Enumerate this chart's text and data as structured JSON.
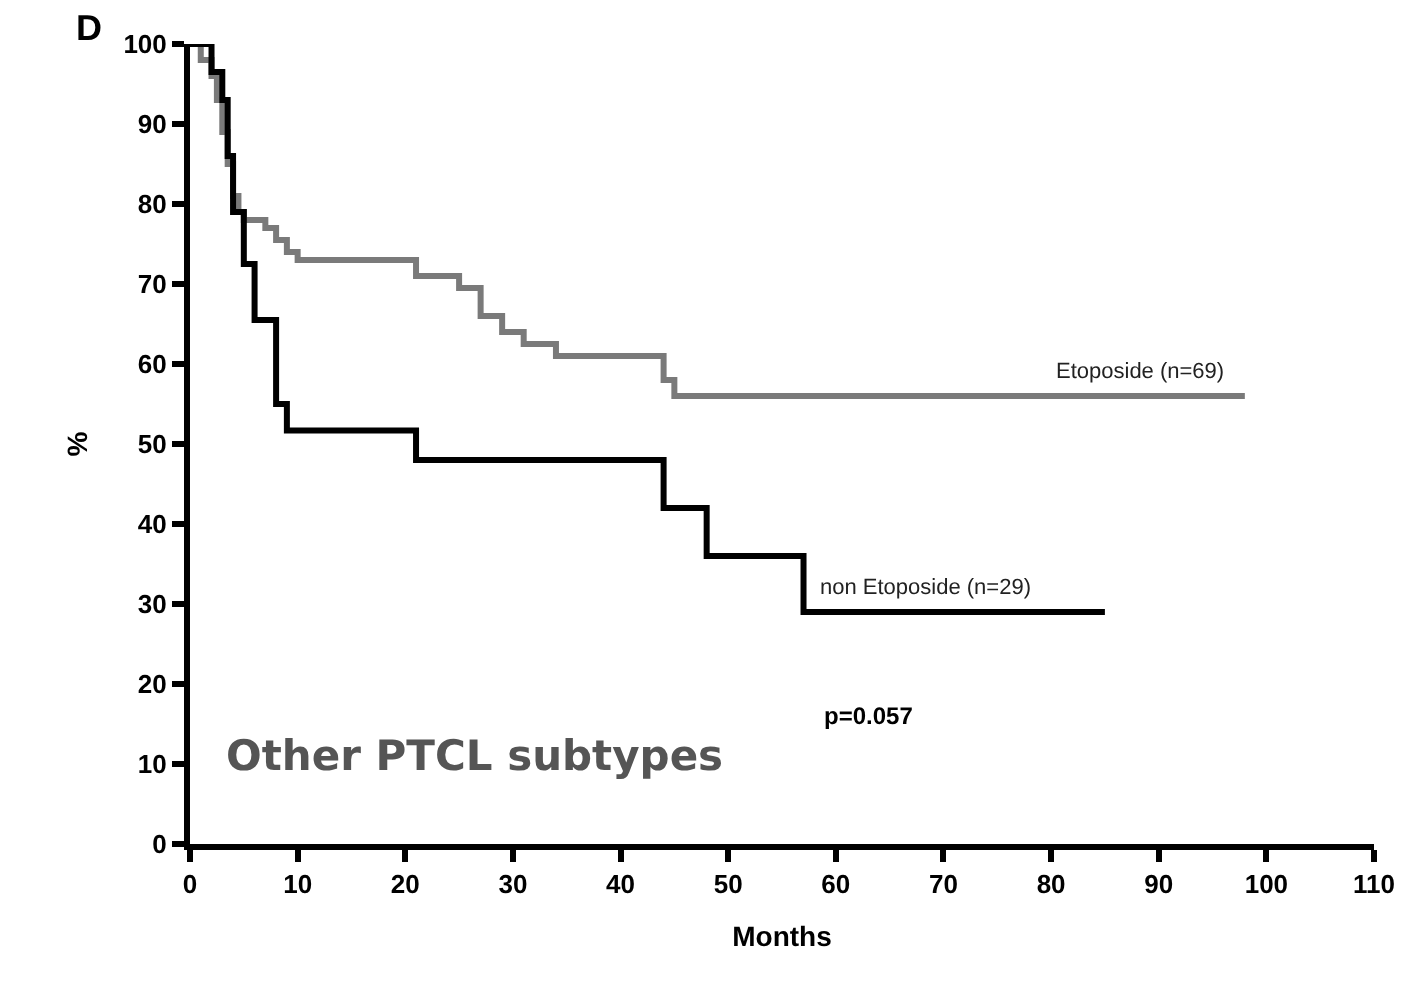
{
  "chart_data": {
    "type": "step",
    "xlabel": "Months",
    "ylabel": "%",
    "xlim": [
      0,
      110
    ],
    "xticks": [
      0,
      10,
      20,
      30,
      40,
      50,
      60,
      70,
      80,
      90,
      100,
      110
    ],
    "ylim": [
      0,
      100
    ],
    "yticks": [
      0,
      10,
      20,
      30,
      40,
      50,
      60,
      70,
      80,
      90,
      100
    ],
    "legend": false,
    "marker": "none",
    "line_style": "solid",
    "series": [
      {
        "name": "Etoposide (n=69)",
        "color": "#7a7a7a",
        "x": [
          0,
          1,
          2,
          2.5,
          3,
          3.5,
          4,
          4.5,
          5,
          7,
          8,
          9,
          10,
          18,
          21,
          25,
          27,
          29,
          31,
          34,
          43,
          44,
          45,
          98
        ],
        "values": [
          100,
          98,
          96,
          93,
          89,
          85,
          81,
          79,
          78,
          77,
          75.5,
          74,
          73,
          73,
          71,
          69.5,
          66,
          64,
          62.5,
          61,
          61,
          58,
          56,
          56
        ]
      },
      {
        "name": "non Etoposide (n=29)",
        "color": "#000000",
        "x": [
          0,
          2,
          3,
          3.5,
          4,
          5,
          6,
          8,
          9,
          10,
          21,
          44,
          48,
          57,
          85
        ],
        "values": [
          100,
          96.5,
          93,
          86,
          79,
          72.5,
          65.5,
          55,
          51.7,
          51.7,
          48,
          42,
          36,
          29,
          29
        ]
      }
    ],
    "annotations": [
      "D",
      "p=0.057",
      "Other PTCL subtypes"
    ]
  }
}
